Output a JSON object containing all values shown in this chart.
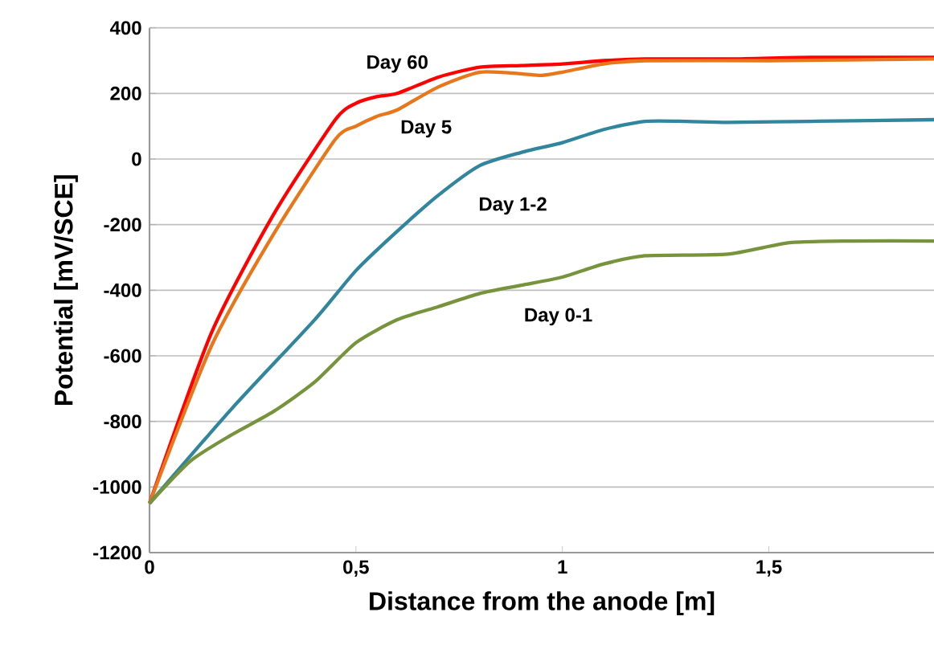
{
  "chart_data": {
    "type": "line",
    "xlabel": "Distance from the anode [m]",
    "ylabel": "Potential [mV/SCE]",
    "xlim": [
      0,
      1.9
    ],
    "ylim": [
      -1200,
      400
    ],
    "xticks": [
      0,
      {
        "value": 0.5,
        "label": "0,5"
      },
      1,
      {
        "value": 1.5,
        "label": "1,5"
      }
    ],
    "yticks": [
      -1200,
      -1000,
      -800,
      -600,
      -400,
      -200,
      0,
      200,
      400
    ],
    "grid": "y",
    "legend": false,
    "marker": "none",
    "line_style": "solid",
    "series": [
      {
        "name": "Day 60",
        "color": "#ff0000",
        "x": [
          0,
          0.15,
          0.3,
          0.45,
          0.5,
          0.55,
          0.6,
          0.7,
          0.8,
          0.9,
          1.0,
          1.1,
          1.2,
          1.4,
          1.6,
          1.9
        ],
        "values": [
          -1050,
          -530,
          -170,
          120,
          170,
          190,
          200,
          250,
          280,
          285,
          290,
          300,
          305,
          305,
          310,
          310
        ]
      },
      {
        "name": "Day 5",
        "color": "#e8761a",
        "x": [
          0,
          0.15,
          0.3,
          0.45,
          0.5,
          0.55,
          0.6,
          0.7,
          0.8,
          0.9,
          0.95,
          1.0,
          1.1,
          1.2,
          1.5,
          1.9
        ],
        "values": [
          -1050,
          -570,
          -230,
          60,
          100,
          130,
          150,
          220,
          265,
          260,
          255,
          265,
          290,
          300,
          300,
          305
        ]
      },
      {
        "name": "Day 1-2",
        "color": "#31859c",
        "x": [
          0,
          0.2,
          0.4,
          0.5,
          0.6,
          0.7,
          0.8,
          0.9,
          1.0,
          1.1,
          1.2,
          1.3,
          1.4,
          1.6,
          1.9
        ],
        "values": [
          -1050,
          -760,
          -490,
          -340,
          -220,
          -110,
          -20,
          20,
          50,
          90,
          115,
          115,
          112,
          115,
          120
        ]
      },
      {
        "name": "Day 0-1",
        "color": "#77933c",
        "x": [
          0,
          0.1,
          0.2,
          0.3,
          0.4,
          0.5,
          0.6,
          0.7,
          0.8,
          0.9,
          1.0,
          1.1,
          1.2,
          1.4,
          1.55,
          1.7,
          1.9
        ],
        "values": [
          -1050,
          -920,
          -840,
          -770,
          -680,
          -560,
          -490,
          -450,
          -410,
          -385,
          -360,
          -320,
          -295,
          -290,
          -255,
          -250,
          -250
        ]
      }
    ]
  }
}
